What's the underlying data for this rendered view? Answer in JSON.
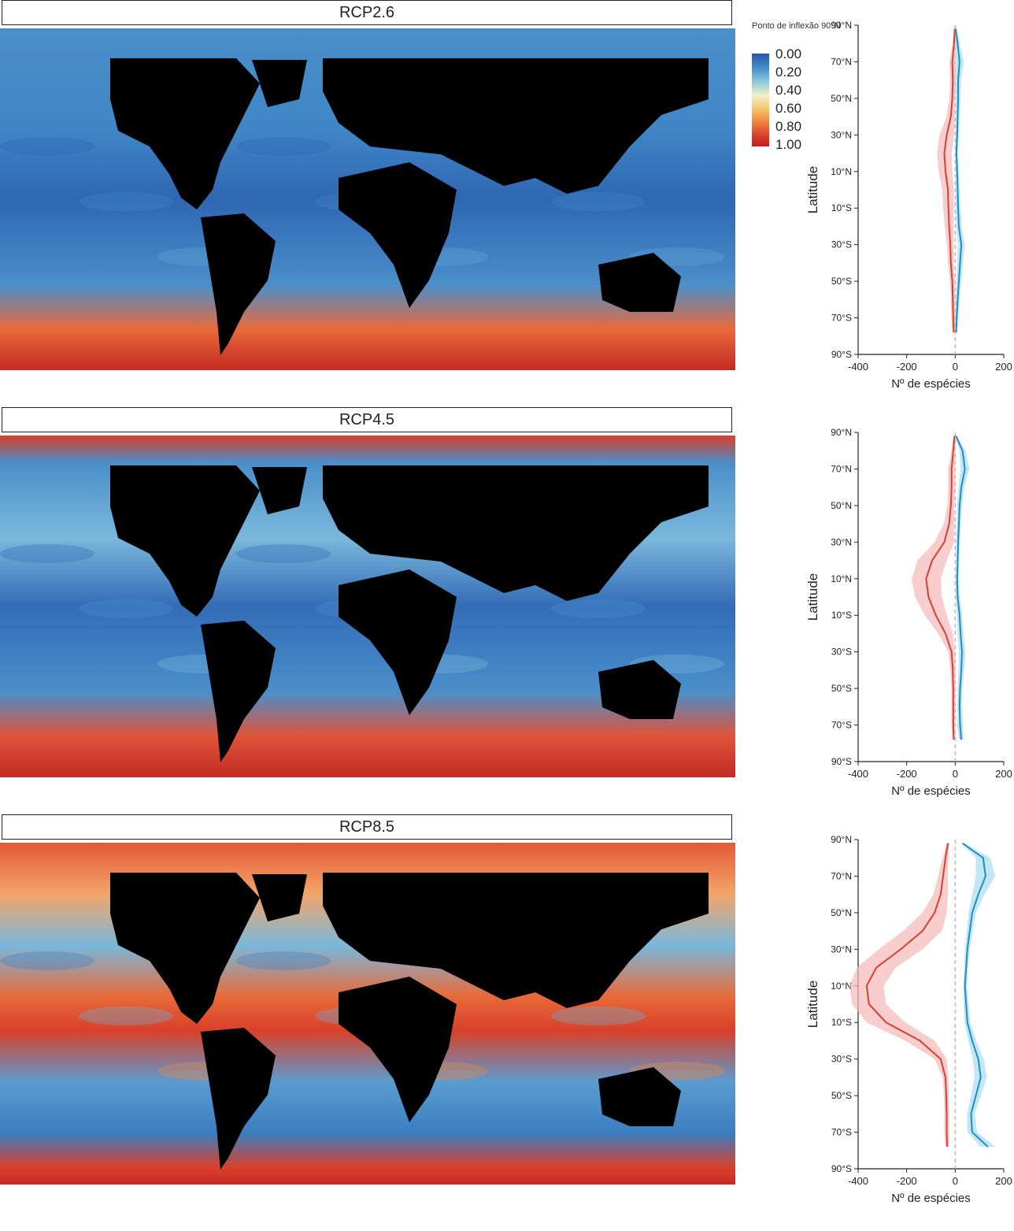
{
  "inflection_label": "Ponto de inflexão 90°N",
  "legend": {
    "labels": [
      "0.00",
      "0.20",
      "0.40",
      "0.60",
      "0.80",
      "1.00"
    ],
    "colors": [
      "#2b55a8",
      "#3f8fc7",
      "#f2f0c8",
      "#f7c36b",
      "#ef7d3a",
      "#c41e1e"
    ]
  },
  "colors": {
    "loss": "#d8402f",
    "loss_band": "#f4b8b8",
    "gain": "#1f8fc2",
    "gain_band": "#a9dcf0",
    "land": "#000000",
    "zero_line": "#bbbbbb"
  },
  "panels": [
    {
      "title": "RCP2.6",
      "map_tone": "low"
    },
    {
      "title": "RCP4.5",
      "map_tone": "mid"
    },
    {
      "title": "RCP8.5",
      "map_tone": "high"
    }
  ],
  "chart_data": [
    {
      "type": "line",
      "scenario": "RCP2.6",
      "xlabel": "Nº de espécies",
      "ylabel": "Latitude",
      "xlim": [
        -400,
        200
      ],
      "ylim": [
        -90,
        90
      ],
      "xticks": [
        "-400",
        "-200",
        "0",
        "200"
      ],
      "yticks": [
        "90°N",
        "70°N",
        "50°N",
        "30°N",
        "10°N",
        "10°S",
        "30°S",
        "50°S",
        "70°S",
        "90°S"
      ],
      "lat": [
        88,
        80,
        70,
        60,
        50,
        40,
        30,
        20,
        10,
        0,
        -10,
        -20,
        -30,
        -40,
        -50,
        -60,
        -70,
        -78
      ],
      "series": [
        {
          "values": [
            -2,
            -5,
            -12,
            -10,
            -12,
            -18,
            -35,
            -45,
            -40,
            -30,
            -28,
            -25,
            -20,
            -18,
            -12,
            -10,
            -8,
            -6
          ],
          "band_width": [
            3,
            6,
            12,
            12,
            12,
            18,
            30,
            30,
            28,
            24,
            22,
            18,
            14,
            12,
            10,
            8,
            8,
            6
          ]
        },
        {
          "values": [
            2,
            10,
            18,
            12,
            12,
            10,
            8,
            5,
            8,
            10,
            12,
            15,
            25,
            20,
            15,
            10,
            6,
            4
          ],
          "band_width": [
            3,
            8,
            18,
            12,
            10,
            8,
            6,
            5,
            6,
            8,
            10,
            12,
            14,
            12,
            10,
            8,
            6,
            4
          ]
        }
      ]
    },
    {
      "type": "line",
      "scenario": "RCP4.5",
      "xlabel": "Nº de espécies",
      "ylabel": "Latitude",
      "xlim": [
        -400,
        200
      ],
      "ylim": [
        -90,
        90
      ],
      "xticks": [
        "-400",
        "-200",
        "0",
        "200"
      ],
      "yticks": [
        "90°N",
        "70°N",
        "50°N",
        "30°N",
        "10°N",
        "10°S",
        "30°S",
        "50°S",
        "70°S",
        "90°S"
      ],
      "lat": [
        88,
        80,
        70,
        60,
        50,
        40,
        30,
        20,
        10,
        0,
        -10,
        -20,
        -30,
        -40,
        -50,
        -60,
        -70,
        -78
      ],
      "series": [
        {
          "values": [
            -3,
            -8,
            -15,
            -15,
            -18,
            -25,
            -45,
            -95,
            -120,
            -110,
            -80,
            -40,
            -15,
            -10,
            -8,
            -8,
            -8,
            -6
          ],
          "band_width": [
            4,
            8,
            14,
            14,
            14,
            22,
            40,
            60,
            60,
            55,
            45,
            30,
            14,
            10,
            8,
            8,
            8,
            6
          ]
        },
        {
          "values": [
            3,
            30,
            40,
            25,
            18,
            15,
            12,
            10,
            8,
            10,
            18,
            22,
            28,
            25,
            20,
            18,
            20,
            25
          ],
          "band_width": [
            4,
            12,
            18,
            12,
            10,
            8,
            8,
            6,
            6,
            8,
            10,
            12,
            14,
            12,
            10,
            10,
            12,
            10
          ]
        }
      ]
    },
    {
      "type": "line",
      "scenario": "RCP8.5",
      "xlabel": "Nº de espécies",
      "ylabel": "Latitude",
      "xlim": [
        -400,
        200
      ],
      "ylim": [
        -90,
        90
      ],
      "xticks": [
        "-400",
        "-200",
        "0",
        "200"
      ],
      "yticks": [
        "90°N",
        "70°N",
        "50°N",
        "30°N",
        "10°N",
        "10°S",
        "30°S",
        "50°S",
        "70°S",
        "90°S"
      ],
      "lat": [
        88,
        80,
        70,
        60,
        50,
        40,
        30,
        20,
        10,
        0,
        -10,
        -20,
        -30,
        -40,
        -50,
        -60,
        -70,
        -78
      ],
      "series": [
        {
          "values": [
            -5,
            -15,
            -25,
            -35,
            -60,
            -110,
            -200,
            -300,
            -340,
            -330,
            -260,
            -120,
            -35,
            -15,
            -12,
            -10,
            -10,
            -8
          ],
          "band_width": [
            6,
            12,
            20,
            30,
            50,
            80,
            90,
            80,
            70,
            70,
            80,
            60,
            25,
            12,
            10,
            10,
            10,
            8
          ],
          "plot_x_offset": -25
        },
        {
          "values": [
            5,
            90,
            100,
            70,
            45,
            35,
            25,
            20,
            15,
            20,
            25,
            45,
            70,
            80,
            60,
            40,
            45,
            110
          ],
          "band_width": [
            6,
            30,
            40,
            25,
            15,
            12,
            10,
            8,
            8,
            10,
            12,
            16,
            22,
            25,
            20,
            16,
            20,
            30
          ],
          "plot_x_offset": 25
        }
      ]
    }
  ]
}
